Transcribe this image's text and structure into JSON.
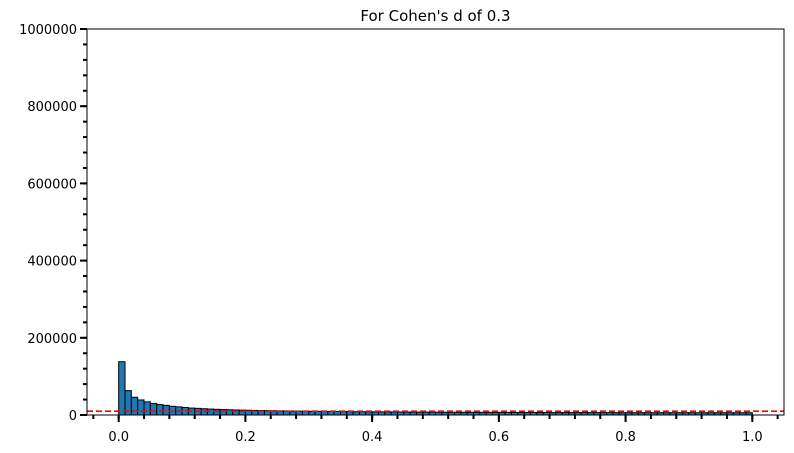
{
  "chart_data": {
    "type": "bar",
    "title": "For Cohen's d of 0.3",
    "xlabel": "",
    "ylabel": "",
    "xlim": [
      -0.05,
      1.05
    ],
    "ylim": [
      0,
      1000000
    ],
    "x_ticks": [
      0.0,
      0.2,
      0.4,
      0.6,
      0.8,
      1.0
    ],
    "x_tick_labels": [
      "0.0",
      "0.2",
      "0.4",
      "0.6",
      "0.8",
      "1.0"
    ],
    "y_ticks": [
      0,
      200000,
      400000,
      600000,
      800000,
      1000000
    ],
    "y_tick_labels": [
      "0",
      "200000",
      "400000",
      "600000",
      "800000",
      "1000000"
    ],
    "x_minor_step": 0.04,
    "y_minor_step": 40000,
    "grid": false,
    "bin_width": 0.01,
    "bins_start": 0.0,
    "values": [
      138000,
      63000,
      46000,
      39000,
      34000,
      30000,
      27000,
      25000,
      22500,
      21000,
      19500,
      18000,
      17200,
      16200,
      15400,
      14700,
      14100,
      13500,
      13000,
      12600,
      12200,
      11800,
      11500,
      11200,
      10900,
      10600,
      10400,
      10200,
      10000,
      9800,
      9600,
      9400,
      9300,
      9100,
      9000,
      8800,
      8700,
      8600,
      8450,
      8300,
      8200,
      8100,
      8000,
      7950,
      7850,
      7750,
      7650,
      7550,
      7500,
      7400,
      7300,
      7250,
      7150,
      7100,
      7050,
      6950,
      6900,
      6850,
      6800,
      6750,
      6700,
      6650,
      6600,
      6550,
      6500,
      6450,
      6400,
      6350,
      6300,
      6280,
      6250,
      6220,
      6200,
      6180,
      6150,
      6130,
      6110,
      6090,
      6070,
      6050,
      6030,
      6010,
      6000,
      5990,
      5980,
      5970,
      5960,
      5950,
      5940,
      5930,
      5920,
      5910,
      5900,
      5900,
      5900,
      5900,
      5900,
      5900,
      5900,
      5900
    ],
    "bar_color": "#1f77b4",
    "bar_edge_color": "#000000",
    "reference_line": {
      "y": 10000,
      "color": "#ff0000",
      "style": "dashed"
    }
  }
}
